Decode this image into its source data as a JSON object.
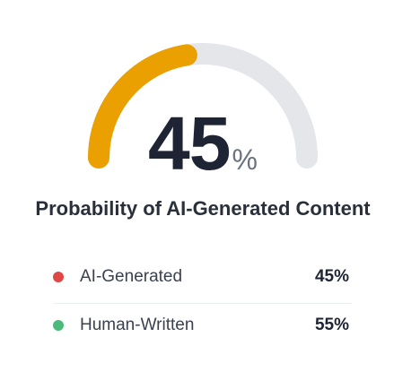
{
  "gauge": {
    "value": 45,
    "display_value": "45",
    "unit": "%",
    "fill_color": "#e9a000",
    "track_color": "#e5e6ea"
  },
  "title": "Probability of AI-Generated Content",
  "legend": [
    {
      "label": "AI-Generated",
      "value": "45%",
      "color": "#e04848"
    },
    {
      "label": "Human-Written",
      "value": "55%",
      "color": "#4cba7b"
    }
  ]
}
